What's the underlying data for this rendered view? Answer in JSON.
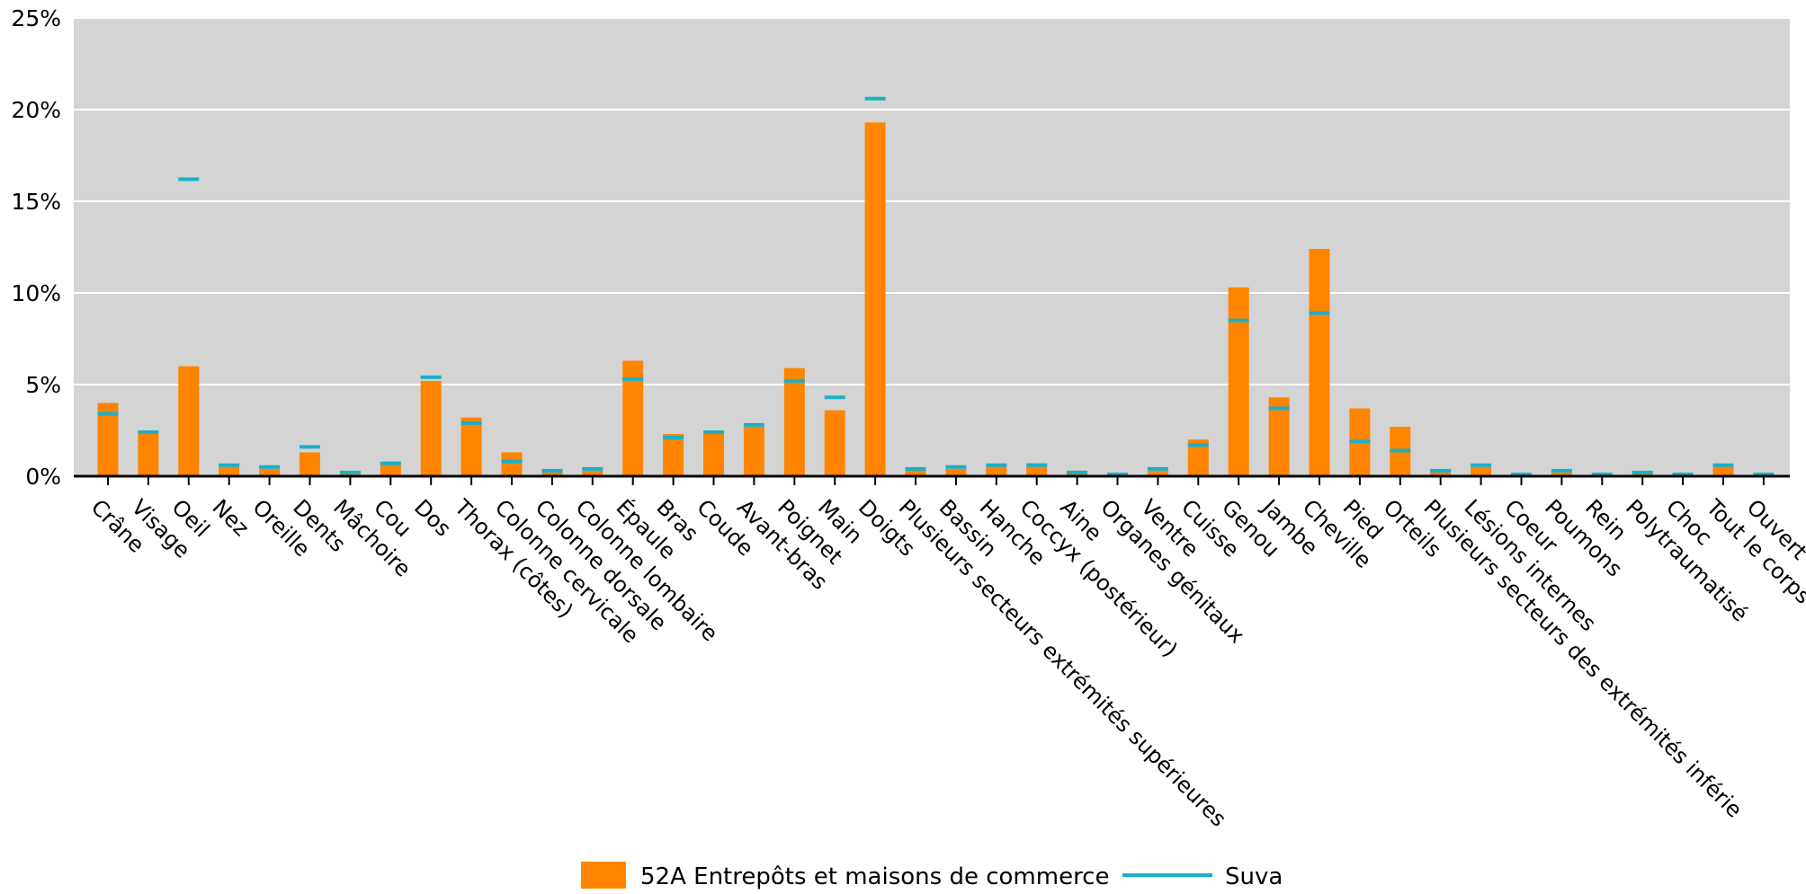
{
  "chart_data": {
    "type": "bar",
    "categories": [
      "Crâne",
      "Visage",
      "Oeil",
      "Nez",
      "Oreille",
      "Dents",
      "Mâchoire",
      "Cou",
      "Dos",
      "Thorax (côtes)",
      "Colonne cervicale",
      "Colonne dorsale",
      "Colonne lombaire",
      "Épaule",
      "Bras",
      "Coude",
      "Avant-bras",
      "Poignet",
      "Main",
      "Doigts",
      "Plusieurs secteurs extrémités supérieures",
      "Bassin",
      "Hanche",
      "Coccyx (postérieur)",
      "Aine",
      "Organes génitaux",
      "Ventre",
      "Cuisse",
      "Genou",
      "Jambe",
      "Cheville",
      "Pied",
      "Orteils",
      "Plusieurs secteurs des extrémités inférie",
      "Lésions internes",
      "Coeur",
      "Poumons",
      "Rein",
      "Polytraumatisé",
      "Choc",
      "Tout le corps",
      "Ouvert"
    ],
    "series": [
      {
        "name": "52A Entrepôts et maisons de commerce",
        "style": "bar",
        "color": "#ff8500",
        "values": [
          4.0,
          2.4,
          6.0,
          0.5,
          0.4,
          1.3,
          0.1,
          0.8,
          5.2,
          3.2,
          1.3,
          0.3,
          0.3,
          6.3,
          2.3,
          2.4,
          2.7,
          5.9,
          3.6,
          19.3,
          0.4,
          0.4,
          0.6,
          0.7,
          0.3,
          0.0,
          0.3,
          2.0,
          10.3,
          4.3,
          12.4,
          3.7,
          2.7,
          0.3,
          0.5,
          0.0,
          0.2,
          0.0,
          0.2,
          0.1,
          0.6,
          0.0
        ]
      },
      {
        "name": "Suva",
        "style": "marker",
        "color": "#1ab0c9",
        "values": [
          3.4,
          2.4,
          16.2,
          0.6,
          0.5,
          1.6,
          0.2,
          0.7,
          5.4,
          2.9,
          0.8,
          0.3,
          0.4,
          5.3,
          2.1,
          2.4,
          2.8,
          5.2,
          4.3,
          20.6,
          0.4,
          0.5,
          0.6,
          0.6,
          0.2,
          0.1,
          0.4,
          1.7,
          8.5,
          3.7,
          8.9,
          1.9,
          1.4,
          0.3,
          0.6,
          0.1,
          0.3,
          0.1,
          0.2,
          0.1,
          0.6,
          0.1
        ]
      }
    ],
    "ylim": [
      0,
      25
    ],
    "yticks": [
      0,
      5,
      10,
      15,
      20,
      25
    ],
    "ytick_labels": [
      "0%",
      "5%",
      "10%",
      "15%",
      "20%",
      "25%"
    ],
    "grid": true,
    "plot_background": "#d4d4d4",
    "legend_position": "bottom",
    "title": "",
    "xlabel": "",
    "ylabel": ""
  }
}
